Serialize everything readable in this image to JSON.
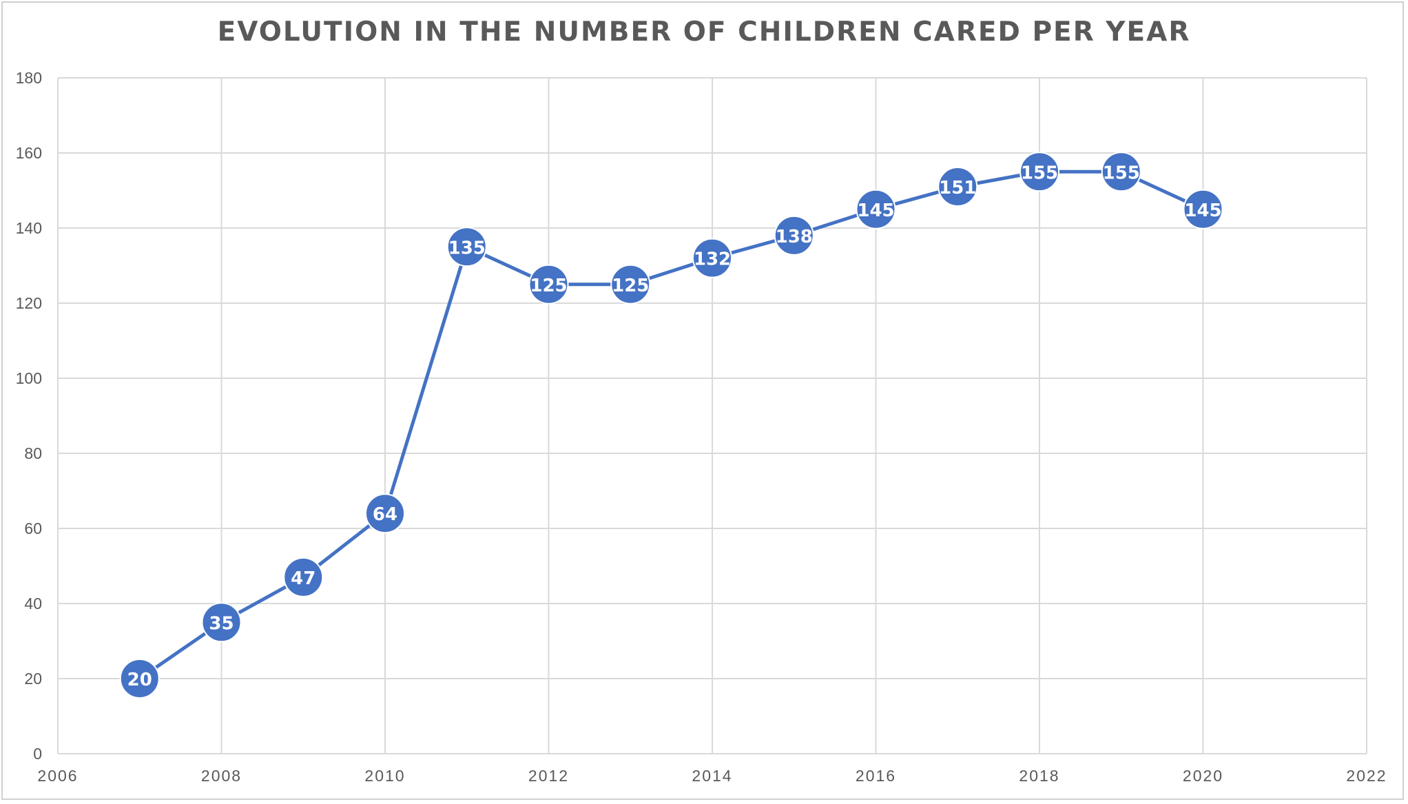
{
  "chart_data": {
    "type": "scatter",
    "title": "EVOLUTION IN THE NUMBER OF CHILDREN CARED PER YEAR",
    "xlabel": "",
    "ylabel": "",
    "xlim": [
      2006,
      2022
    ],
    "ylim": [
      0,
      180
    ],
    "x_ticks": [
      2006,
      2008,
      2010,
      2012,
      2014,
      2016,
      2018,
      2020,
      2022
    ],
    "y_ticks": [
      0,
      20,
      40,
      60,
      80,
      100,
      120,
      140,
      160,
      180
    ],
    "grid": true,
    "legend": "none",
    "lines_connected": true,
    "series": [
      {
        "x": [
          2007,
          2008,
          2009,
          2010,
          2011,
          2012,
          2013,
          2014,
          2015,
          2016,
          2017,
          2018,
          2019,
          2020
        ],
        "y": [
          20,
          35,
          47,
          64,
          135,
          125,
          125,
          132,
          138,
          145,
          151,
          155,
          155,
          145
        ],
        "data_labels": true
      }
    ],
    "colors": {
      "series": "#4472c4",
      "grid": "#d9d9d9",
      "text": "#595959",
      "label_text": "#ffffff"
    }
  }
}
